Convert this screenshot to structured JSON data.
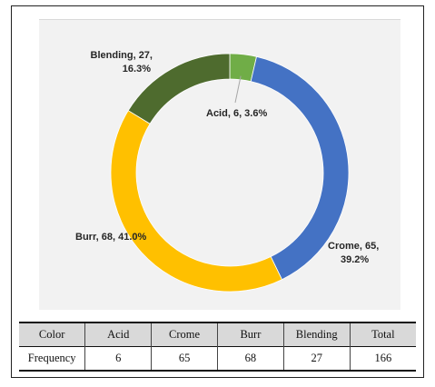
{
  "chart_data": {
    "type": "donut",
    "title": "",
    "slices": [
      {
        "name": "Acid",
        "value": 6,
        "percent": "3.6%",
        "label_line1": "Acid, 6, 3.6%",
        "label_line2": "",
        "color": "#70ad47"
      },
      {
        "name": "Crome",
        "value": 65,
        "percent": "39.2%",
        "label_line1": "Crome, 65,",
        "label_line2": "39.2%",
        "color": "#4472c4"
      },
      {
        "name": "Burr",
        "value": 68,
        "percent": "41.0%",
        "label_line1": "Burr, 68, 41.0%",
        "label_line2": "",
        "color": "#ffc000"
      },
      {
        "name": "Blending",
        "value": 27,
        "percent": "16.3%",
        "label_line1": "Blending, 27,",
        "label_line2": "16.3%",
        "color": "#4e6b2e"
      }
    ],
    "start_angle_deg": 0,
    "direction": "clockwise"
  },
  "table": {
    "headers": [
      "Color",
      "Acid",
      "Crome",
      "Burr",
      "Blending",
      "Total"
    ],
    "row": [
      "Frequency",
      "6",
      "65",
      "68",
      "27",
      "166"
    ]
  }
}
